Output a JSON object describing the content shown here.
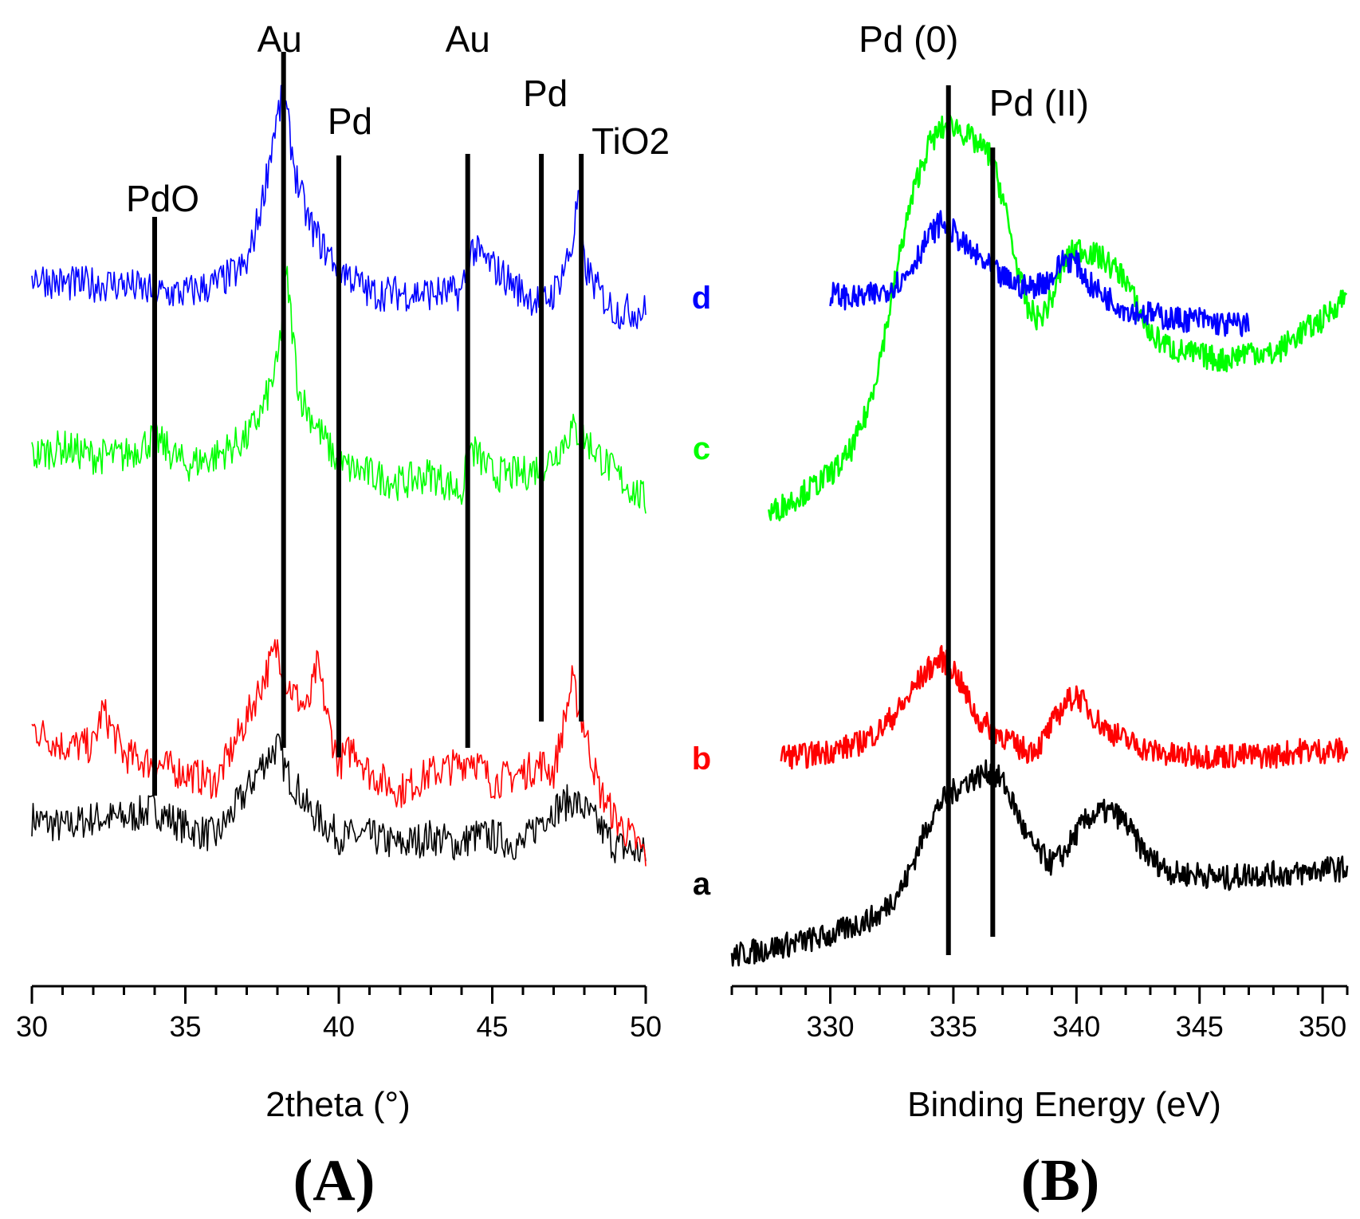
{
  "chart_data": [
    {
      "panel": "A",
      "type": "line",
      "xlabel": "2theta (°)",
      "ylabel": "",
      "xlim": [
        30,
        50
      ],
      "xticks": [
        30,
        35,
        40,
        45,
        50
      ],
      "panel_label": "(A)",
      "reference_lines": [
        {
          "label": "PdO",
          "x": 34.0
        },
        {
          "label": "Au",
          "x": 38.2
        },
        {
          "label": "Pd",
          "x": 40.0
        },
        {
          "label": "Au",
          "x": 44.2
        },
        {
          "label": "Pd",
          "x": 46.6
        },
        {
          "label": "TiO2",
          "x": 47.9
        }
      ],
      "series": [
        {
          "name": "a",
          "color": "#000000",
          "x": [
            30,
            31,
            32,
            33,
            34,
            35,
            36,
            37,
            37.5,
            38,
            38.3,
            38.7,
            39,
            40,
            41,
            42,
            43,
            44,
            44.3,
            45,
            46,
            46.6,
            47,
            47.6,
            48,
            48.5,
            49,
            50
          ],
          "y": [
            0.3,
            0.29,
            0.3,
            0.3,
            0.31,
            0.29,
            0.28,
            0.33,
            0.36,
            0.38,
            0.35,
            0.33,
            0.31,
            0.28,
            0.28,
            0.27,
            0.28,
            0.27,
            0.28,
            0.28,
            0.27,
            0.3,
            0.31,
            0.32,
            0.31,
            0.29,
            0.27,
            0.26
          ]
        },
        {
          "name": "b",
          "color": "#ff0000",
          "x": [
            30,
            31,
            32,
            32.3,
            33,
            34,
            35,
            36,
            37,
            37.5,
            38,
            38.3,
            38.7,
            39,
            39.3,
            39.7,
            40,
            40.5,
            41,
            42,
            43,
            44,
            44.3,
            45,
            46,
            46.6,
            47,
            47.6,
            48,
            48.5,
            49,
            50
          ],
          "y": [
            0.4,
            0.38,
            0.38,
            0.42,
            0.37,
            0.36,
            0.35,
            0.34,
            0.41,
            0.45,
            0.49,
            0.45,
            0.43,
            0.42,
            0.47,
            0.4,
            0.36,
            0.38,
            0.35,
            0.33,
            0.35,
            0.36,
            0.37,
            0.34,
            0.35,
            0.36,
            0.35,
            0.45,
            0.4,
            0.33,
            0.3,
            0.26
          ]
        },
        {
          "name": "c",
          "color": "#00ff00",
          "x": [
            30,
            31,
            32,
            33,
            34,
            35,
            36,
            37,
            37.5,
            38,
            38.3,
            38.7,
            39,
            40,
            41,
            42,
            43,
            44,
            44.3,
            45,
            46,
            46.6,
            47,
            47.6,
            48,
            48.5,
            49,
            50
          ],
          "y": [
            0.7,
            0.71,
            0.7,
            0.7,
            0.72,
            0.69,
            0.7,
            0.72,
            0.75,
            0.8,
            0.9,
            0.77,
            0.75,
            0.69,
            0.68,
            0.67,
            0.68,
            0.66,
            0.71,
            0.68,
            0.68,
            0.69,
            0.7,
            0.73,
            0.72,
            0.7,
            0.68,
            0.65
          ]
        },
        {
          "name": "d",
          "color": "#0000ff",
          "x": [
            30,
            31,
            32,
            33,
            34,
            35,
            36,
            37,
            37.5,
            37.9,
            38.2,
            38.6,
            39,
            39.5,
            40,
            41,
            42,
            43,
            44,
            44.3,
            45,
            46,
            46.6,
            47,
            47.6,
            47.8,
            48,
            48.5,
            49,
            50
          ],
          "y": [
            0.9,
            0.89,
            0.89,
            0.89,
            0.88,
            0.88,
            0.89,
            0.91,
            0.98,
            1.06,
            1.1,
            1.01,
            0.96,
            0.93,
            0.91,
            0.88,
            0.88,
            0.88,
            0.88,
            0.93,
            0.91,
            0.88,
            0.87,
            0.88,
            0.93,
            0.99,
            0.91,
            0.88,
            0.86,
            0.86
          ]
        }
      ]
    },
    {
      "panel": "B",
      "type": "line",
      "xlabel": "Binding Energy (eV)",
      "ylabel": "",
      "xlim": [
        326,
        351
      ],
      "xticks": [
        330,
        335,
        340,
        345,
        350
      ],
      "panel_label": "(B)",
      "reference_lines": [
        {
          "label": "Pd (0)",
          "x": 334.8
        },
        {
          "label": "Pd (II)",
          "x": 336.6
        }
      ],
      "series": [
        {
          "name": "a",
          "color": "#000000",
          "x": [
            326,
            327,
            328,
            329,
            330,
            331,
            332,
            332.5,
            333,
            333.5,
            334,
            334.5,
            335,
            335.5,
            336,
            336.5,
            337,
            337.5,
            338,
            338.5,
            339,
            339.5,
            340,
            340.5,
            341,
            341.5,
            342,
            342.5,
            343,
            344,
            345,
            346,
            347,
            348,
            349,
            350,
            351
          ],
          "y": [
            0.04,
            0.05,
            0.06,
            0.07,
            0.08,
            0.1,
            0.12,
            0.15,
            0.18,
            0.24,
            0.3,
            0.34,
            0.36,
            0.38,
            0.39,
            0.4,
            0.38,
            0.33,
            0.27,
            0.24,
            0.22,
            0.24,
            0.28,
            0.31,
            0.32,
            0.32,
            0.3,
            0.26,
            0.23,
            0.2,
            0.2,
            0.19,
            0.2,
            0.2,
            0.2,
            0.21,
            0.21
          ]
        },
        {
          "name": "b",
          "color": "#ff0000",
          "x": [
            328,
            329,
            330,
            331,
            332,
            333,
            333.5,
            334,
            334.5,
            335,
            335.5,
            336,
            337,
            337.5,
            338,
            338.5,
            339,
            339.5,
            340,
            340.5,
            341,
            342,
            343,
            344,
            345,
            346,
            347,
            348,
            349,
            350,
            351
          ],
          "y": [
            0.43,
            0.43,
            0.44,
            0.45,
            0.48,
            0.53,
            0.57,
            0.6,
            0.62,
            0.6,
            0.55,
            0.5,
            0.47,
            0.45,
            0.44,
            0.45,
            0.49,
            0.53,
            0.55,
            0.52,
            0.49,
            0.46,
            0.44,
            0.43,
            0.43,
            0.43,
            0.43,
            0.43,
            0.44,
            0.44,
            0.44
          ]
        },
        {
          "name": "c",
          "color": "#00ff00",
          "x": [
            327.5,
            328.5,
            329.5,
            330.5,
            331,
            331.5,
            332,
            332.5,
            333,
            333.5,
            334,
            334.5,
            335,
            335.5,
            336,
            336.5,
            337,
            337.5,
            338,
            338.5,
            339,
            339.5,
            340,
            340.5,
            341,
            341.5,
            342,
            342.5,
            343,
            344,
            345,
            346,
            347,
            348,
            349,
            350,
            351
          ],
          "y": [
            0.9,
            0.93,
            0.96,
            1.0,
            1.04,
            1.1,
            1.2,
            1.32,
            1.45,
            1.55,
            1.62,
            1.65,
            1.66,
            1.64,
            1.62,
            1.6,
            1.52,
            1.4,
            1.3,
            1.28,
            1.32,
            1.39,
            1.42,
            1.41,
            1.4,
            1.38,
            1.36,
            1.3,
            1.25,
            1.22,
            1.21,
            1.2,
            1.22,
            1.21,
            1.25,
            1.28,
            1.33
          ]
        },
        {
          "name": "d",
          "color": "#0000ff",
          "x": [
            330,
            331,
            332,
            333,
            333.5,
            334,
            334.5,
            335,
            335.5,
            336,
            336.5,
            337,
            338,
            339,
            339.5,
            340,
            340.5,
            341,
            342,
            343,
            344,
            345,
            346,
            347
          ],
          "y": [
            1.33,
            1.32,
            1.33,
            1.36,
            1.4,
            1.44,
            1.47,
            1.45,
            1.42,
            1.4,
            1.38,
            1.36,
            1.34,
            1.36,
            1.4,
            1.39,
            1.35,
            1.33,
            1.3,
            1.29,
            1.28,
            1.28,
            1.27,
            1.27
          ]
        }
      ]
    }
  ]
}
